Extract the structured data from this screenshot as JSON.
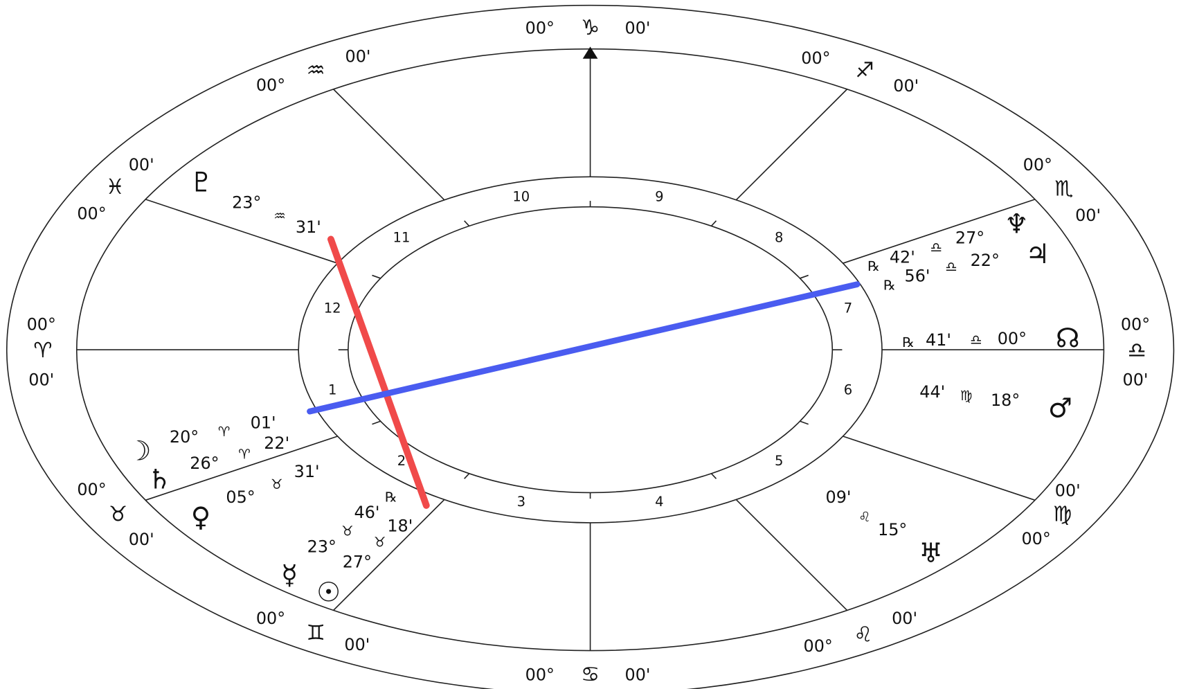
{
  "zodiac_cusps": [
    {
      "degree": "00°",
      "sign": "♑",
      "minute": "00'"
    },
    {
      "degree": "00°",
      "sign": "♐",
      "minute": "00'"
    },
    {
      "degree": "00°",
      "sign": "♏",
      "minute": "00'"
    },
    {
      "degree": "00°",
      "sign": "♎",
      "minute": "00'"
    },
    {
      "degree": "00°",
      "sign": "♍",
      "minute": "00'"
    },
    {
      "degree": "00°",
      "sign": "♌",
      "minute": "00'"
    },
    {
      "degree": "00°",
      "sign": "♋",
      "minute": "00'"
    },
    {
      "degree": "00°",
      "sign": "♊",
      "minute": "00'"
    },
    {
      "degree": "00°",
      "sign": "♉",
      "minute": "00'"
    },
    {
      "degree": "00°",
      "sign": "♈",
      "minute": "00'"
    },
    {
      "degree": "00°",
      "sign": "♓",
      "minute": "00'"
    },
    {
      "degree": "00°",
      "sign": "♒",
      "minute": "00'"
    }
  ],
  "house_numbers": [
    1,
    2,
    3,
    4,
    5,
    6,
    7,
    8,
    9,
    10,
    11,
    12
  ],
  "planets": [
    {
      "glyph": "♇",
      "degree": "23°",
      "sign": "♒",
      "minute": "31'"
    },
    {
      "glyph": "♆",
      "degree": "27°",
      "sign": "♎",
      "minute": "42'",
      "retrograde": "℞"
    },
    {
      "glyph": "♃",
      "degree": "22°",
      "sign": "♎",
      "minute": "56'",
      "retrograde": "℞"
    },
    {
      "glyph": "☊",
      "degree": "00°",
      "sign": "♎",
      "minute": "41'",
      "retrograde": "℞"
    },
    {
      "glyph": "♂",
      "degree": "18°",
      "sign": "♍",
      "minute": "44'"
    },
    {
      "glyph": "♅",
      "degree": "15°",
      "sign": "♌",
      "minute": "09'"
    },
    {
      "glyph": "☽",
      "degree": "20°",
      "sign": "♈",
      "minute": "01'"
    },
    {
      "glyph": "♄",
      "degree": "26°",
      "sign": "♈",
      "minute": "22'"
    },
    {
      "glyph": "♀",
      "degree": "05°",
      "sign": "♉",
      "minute": "31'"
    },
    {
      "glyph": "☿",
      "degree": "23°",
      "sign": "♉",
      "minute": "46'",
      "retrograde": "℞"
    },
    {
      "glyph": "☉",
      "degree": "27°",
      "sign": "♉",
      "minute": "18'"
    }
  ]
}
